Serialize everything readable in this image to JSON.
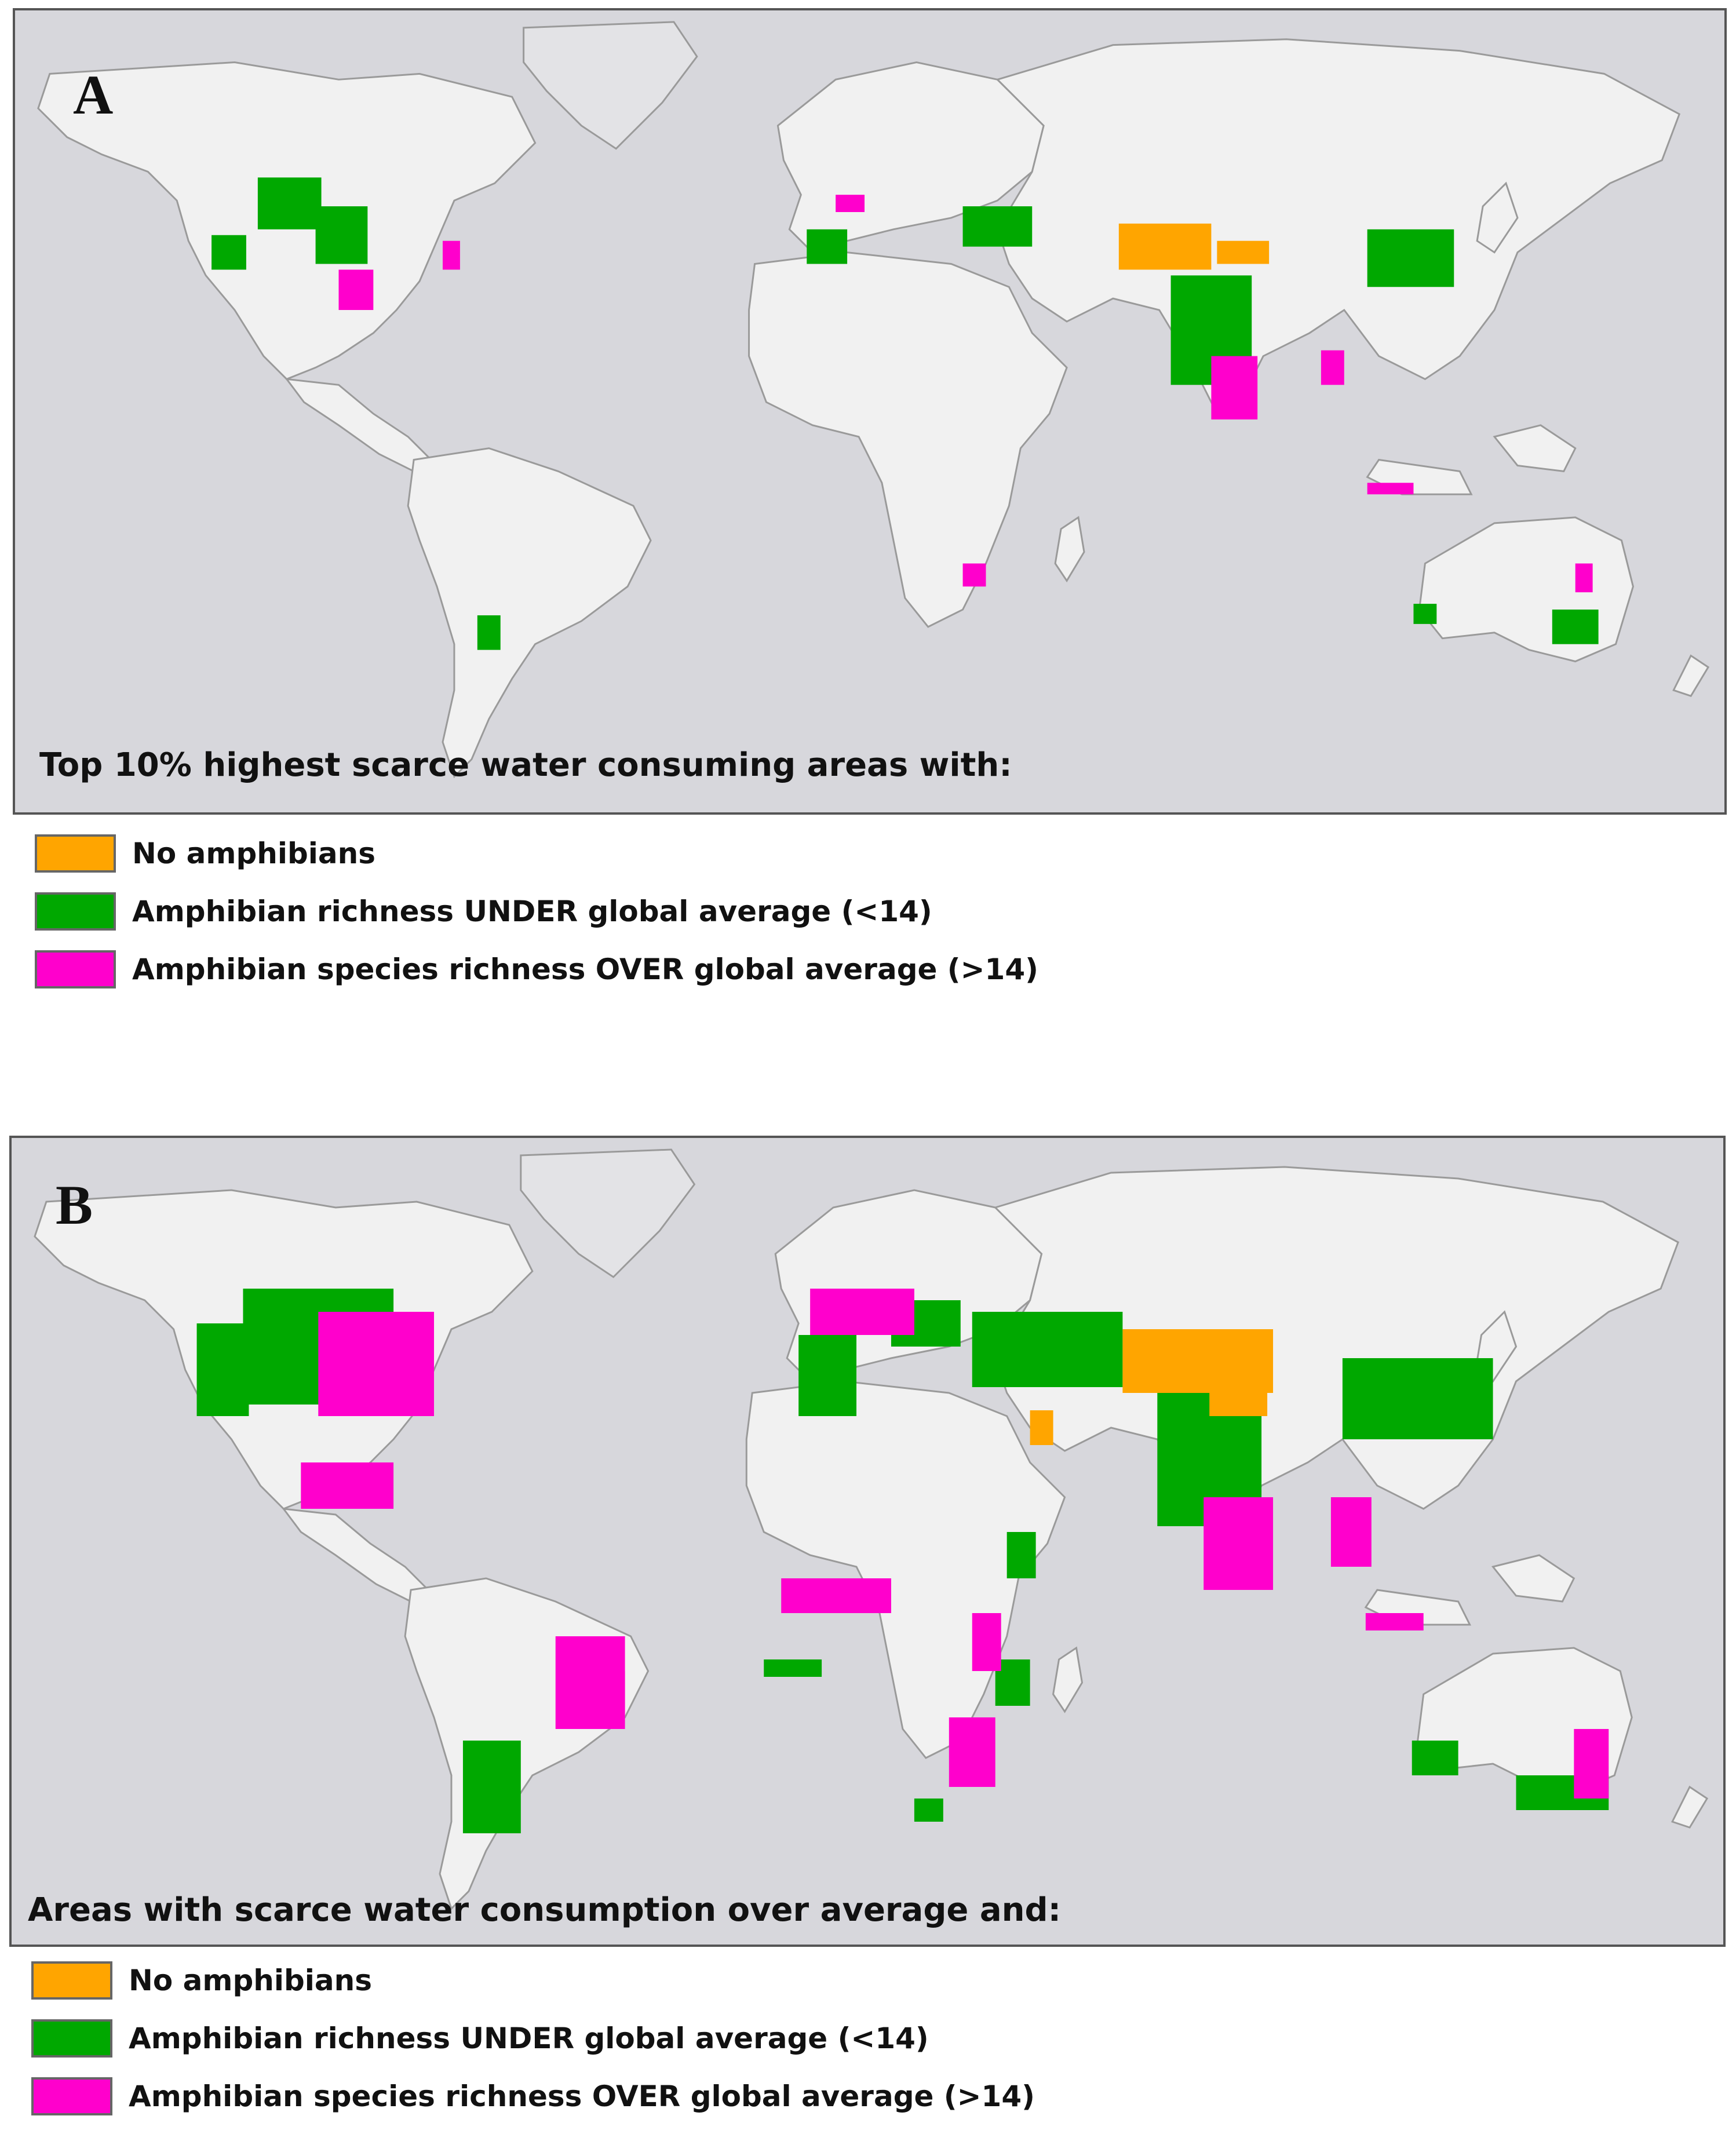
{
  "panels": [
    {
      "label": "A",
      "caption": "Top 10% highest scarce water consuming areas with:"
    },
    {
      "label": "B",
      "caption": "Areas with scarce water consumption over average and:"
    }
  ],
  "legend_a": [
    {
      "label": "No amphibians",
      "color": "#ffa500"
    },
    {
      "label": "Amphibian richness UNDER global average (<14)",
      "color": "#00a800"
    },
    {
      "label": "Amphibian species richness OVER global average (>14)",
      "color": "#ff00cc"
    }
  ],
  "legend_b": [
    {
      "label": "No amphibians",
      "color": "#ffa500"
    },
    {
      "label": "Amphibian richness UNDER global average (<14)",
      "color": "#00a800"
    },
    {
      "label": "Amphibian species richness OVER global average (>14)",
      "color": "#ff00cc"
    }
  ],
  "colors": {
    "ocean": "#d7d7dc",
    "land": "#f1f1f1",
    "ice": "#e3e3e6",
    "border": "#9a9a9a",
    "no_amphibians": "#ffa500",
    "under_average": "#00a800",
    "over_average": "#ff00cc"
  }
}
